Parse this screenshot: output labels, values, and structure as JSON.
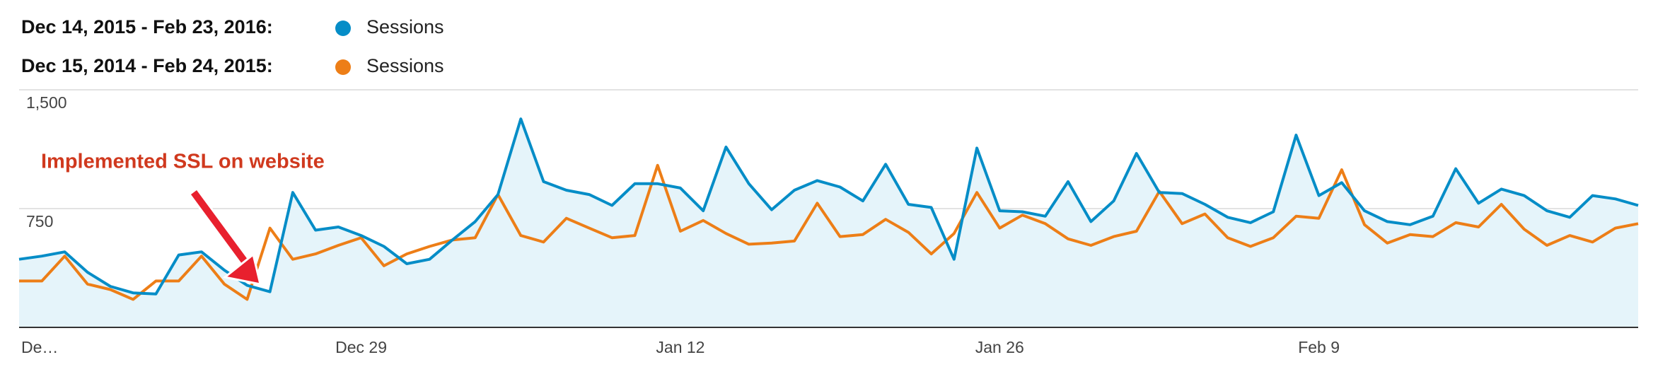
{
  "chart_data": {
    "type": "line",
    "annotation": {
      "text": "Implemented SSL on website"
    },
    "categories": [
      "De…",
      null,
      null,
      null,
      null,
      null,
      null,
      null,
      null,
      null,
      null,
      null,
      null,
      null,
      null,
      "Dec 29",
      null,
      null,
      null,
      null,
      null,
      null,
      null,
      null,
      null,
      null,
      null,
      null,
      null,
      "Jan 12",
      null,
      null,
      null,
      null,
      null,
      null,
      null,
      null,
      null,
      null,
      null,
      null,
      null,
      "Jan 26",
      null,
      null,
      null,
      null,
      null,
      null,
      null,
      null,
      null,
      null,
      null,
      null,
      null,
      "Feb 9",
      null,
      null,
      null,
      null,
      null,
      null,
      null,
      null,
      null,
      null,
      null,
      null,
      null,
      null
    ],
    "series": [
      {
        "name": "Sessions",
        "period": "Dec 14, 2015 - Feb 23, 2016:",
        "color": "#058dc7",
        "area": true,
        "values": [
          430,
          450,
          477,
          348,
          259,
          218,
          211,
          457,
          477,
          361,
          265,
          225,
          852,
          614,
          634,
          580,
          511,
          402,
          430,
          552,
          668,
          839,
          1316,
          920,
          866,
          839,
          770,
          907,
          907,
          880,
          736,
          1139,
          907,
          743,
          866,
          927,
          886,
          798,
          1030,
          777,
          757,
          430,
          1132,
          736,
          730,
          702,
          920,
          668,
          798,
          1098,
          852,
          845,
          777,
          695,
          661,
          730,
          1214,
          832,
          914,
          736,
          668,
          648,
          702,
          1002,
          784,
          873,
          832,
          736,
          695,
          832,
          811,
          770
        ]
      },
      {
        "name": "Sessions",
        "period": "Dec 15, 2014 - Feb 24, 2015:",
        "color": "#ed7e17",
        "area": false,
        "values": [
          293,
          293,
          450,
          273,
          239,
          177,
          293,
          293,
          450,
          273,
          177,
          627,
          430,
          464,
          518,
          566,
          389,
          464,
          511,
          552,
          566,
          839,
          580,
          539,
          689,
          627,
          566,
          580,
          1023,
          607,
          675,
          593,
          525,
          532,
          545,
          784,
          573,
          586,
          682,
          600,
          464,
          593,
          852,
          627,
          709,
          655,
          559,
          518,
          573,
          607,
          859,
          655,
          716,
          566,
          511,
          566,
          702,
          689,
          995,
          648,
          532,
          586,
          573,
          661,
          634,
          777,
          620,
          518,
          580,
          539,
          627,
          655
        ]
      }
    ],
    "ylim": [
      0,
      1500
    ],
    "yticks": [
      750,
      {
        "value": 1500,
        "label": "1,500"
      }
    ],
    "grid": true
  }
}
